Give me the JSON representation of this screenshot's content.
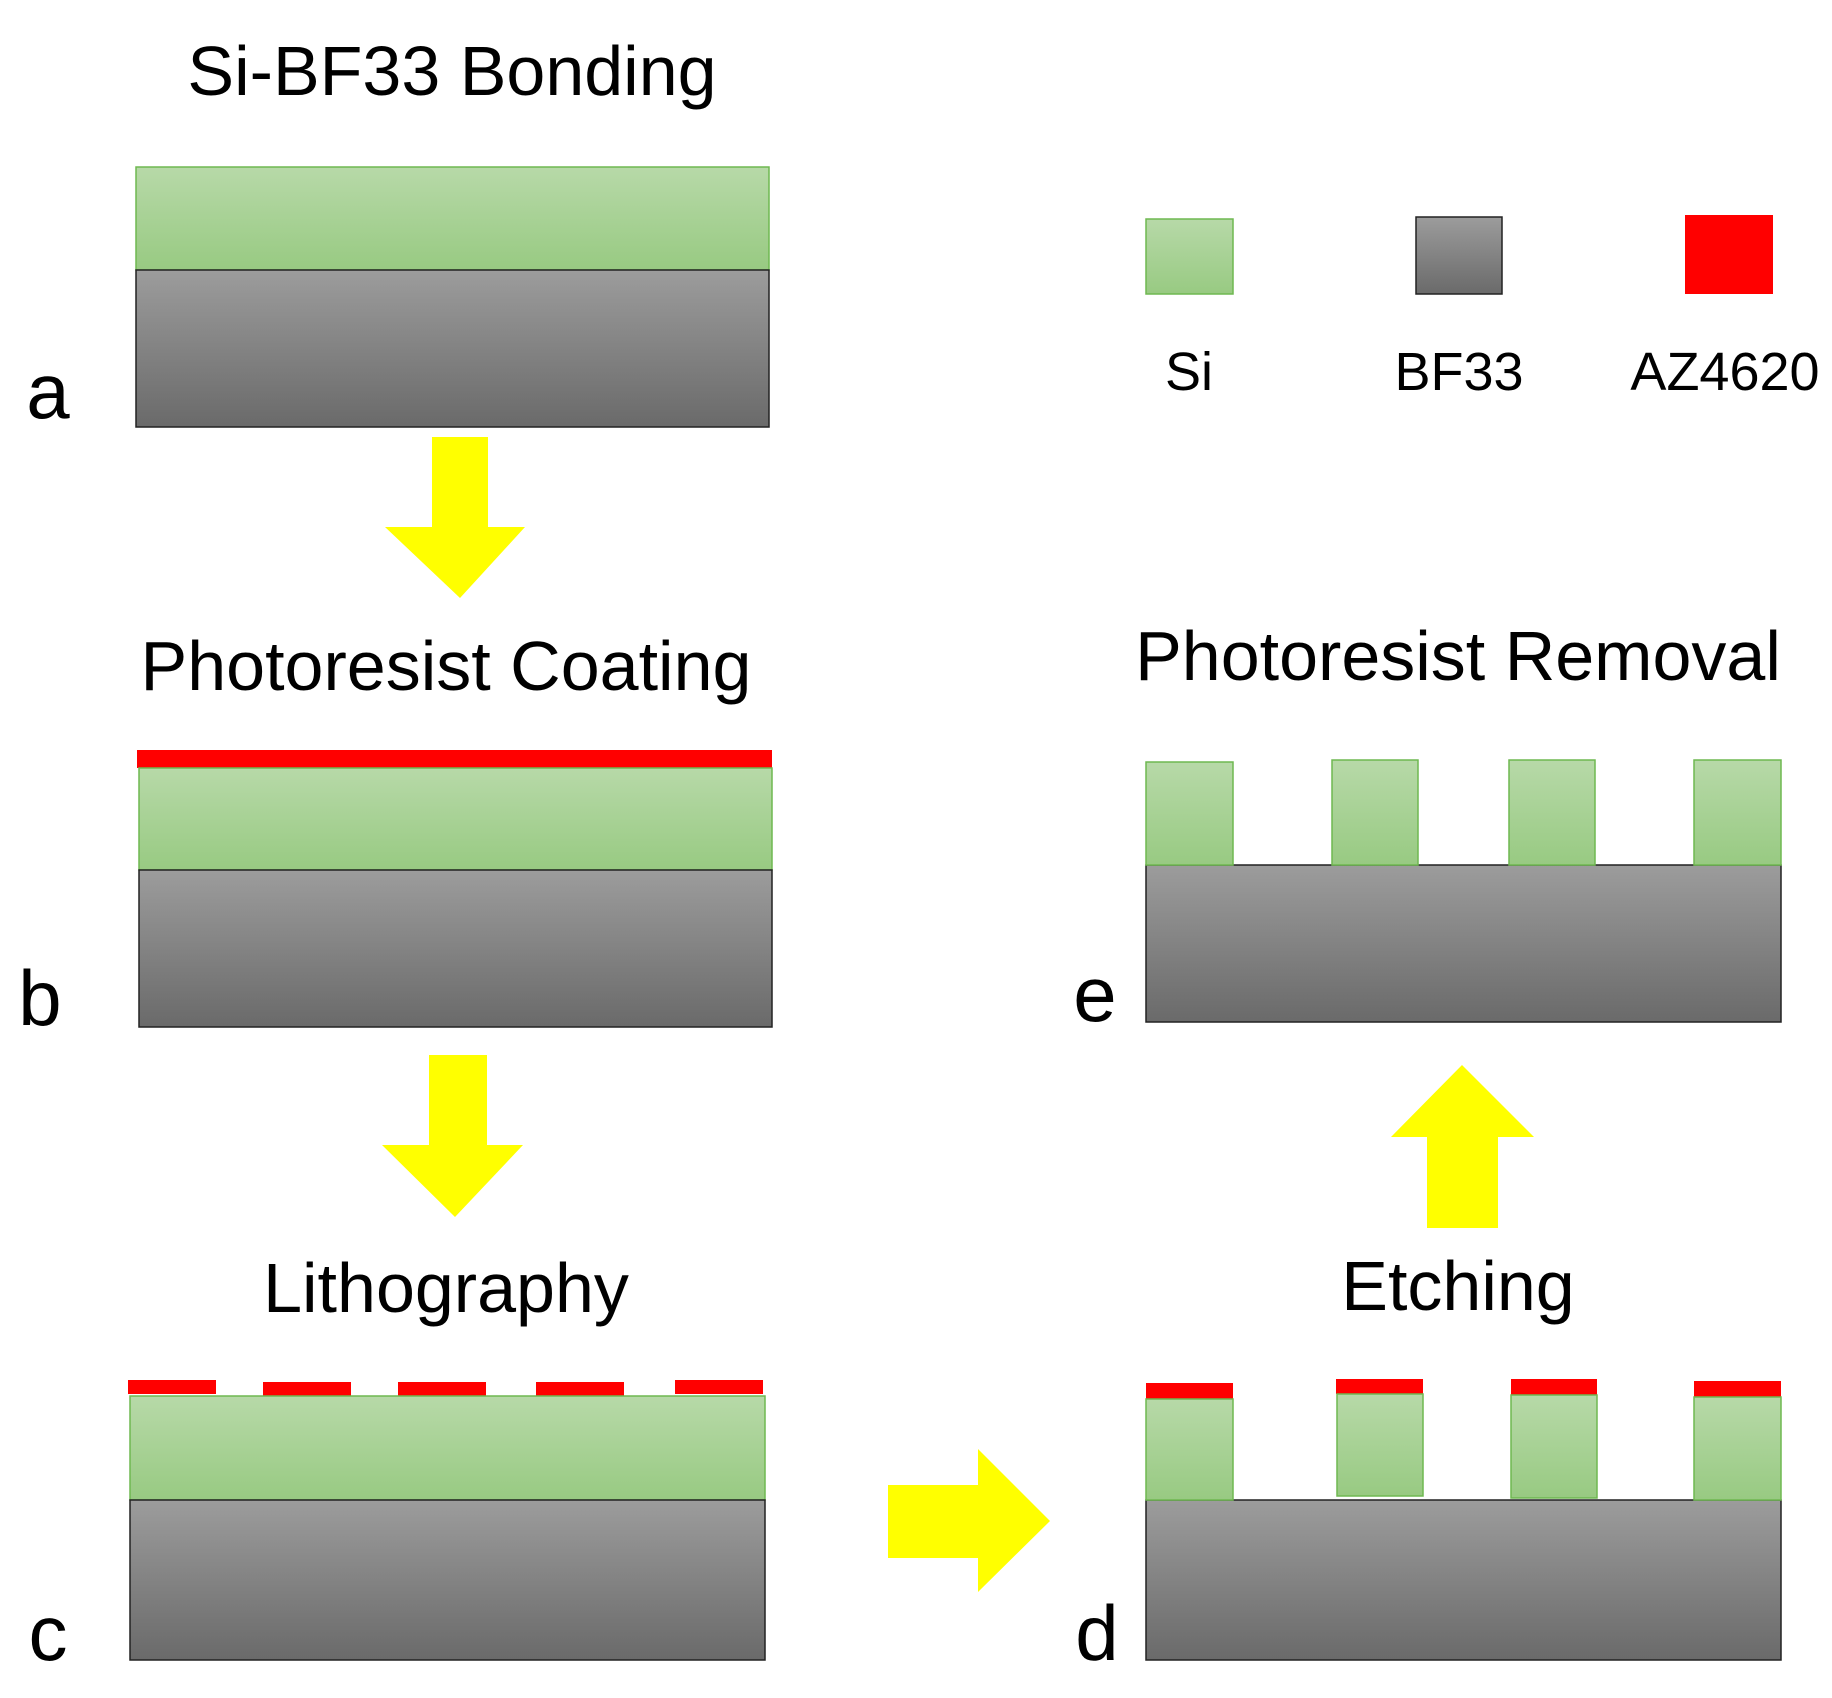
{
  "colors": {
    "si_top": "#b7d9a8",
    "si_bottom": "#98ca82",
    "si_stroke": "#6fb850",
    "bf33_top": "#9c9c9c",
    "bf33_bottom": "#6a6a6a",
    "bf33_stroke": "#222222",
    "az4620": "#ff0000",
    "arrow": "#ffff00"
  },
  "steps": {
    "a": {
      "title": "Si-BF33  Bonding",
      "label": "a"
    },
    "b": {
      "title": "Photoresist  Coating",
      "label": "b"
    },
    "c": {
      "title": "Lithography",
      "label": "c"
    },
    "d": {
      "title": "Etching",
      "label": "d"
    },
    "e": {
      "title": "Photoresist  Removal",
      "label": "e"
    }
  },
  "legend": {
    "si": "Si",
    "bf33": "BF33",
    "az4620": "AZ4620"
  },
  "arrows": [
    {
      "from": "a",
      "to": "b",
      "direction": "down"
    },
    {
      "from": "b",
      "to": "c",
      "direction": "down"
    },
    {
      "from": "c",
      "to": "d",
      "direction": "right"
    },
    {
      "from": "d",
      "to": "e",
      "direction": "up"
    }
  ]
}
